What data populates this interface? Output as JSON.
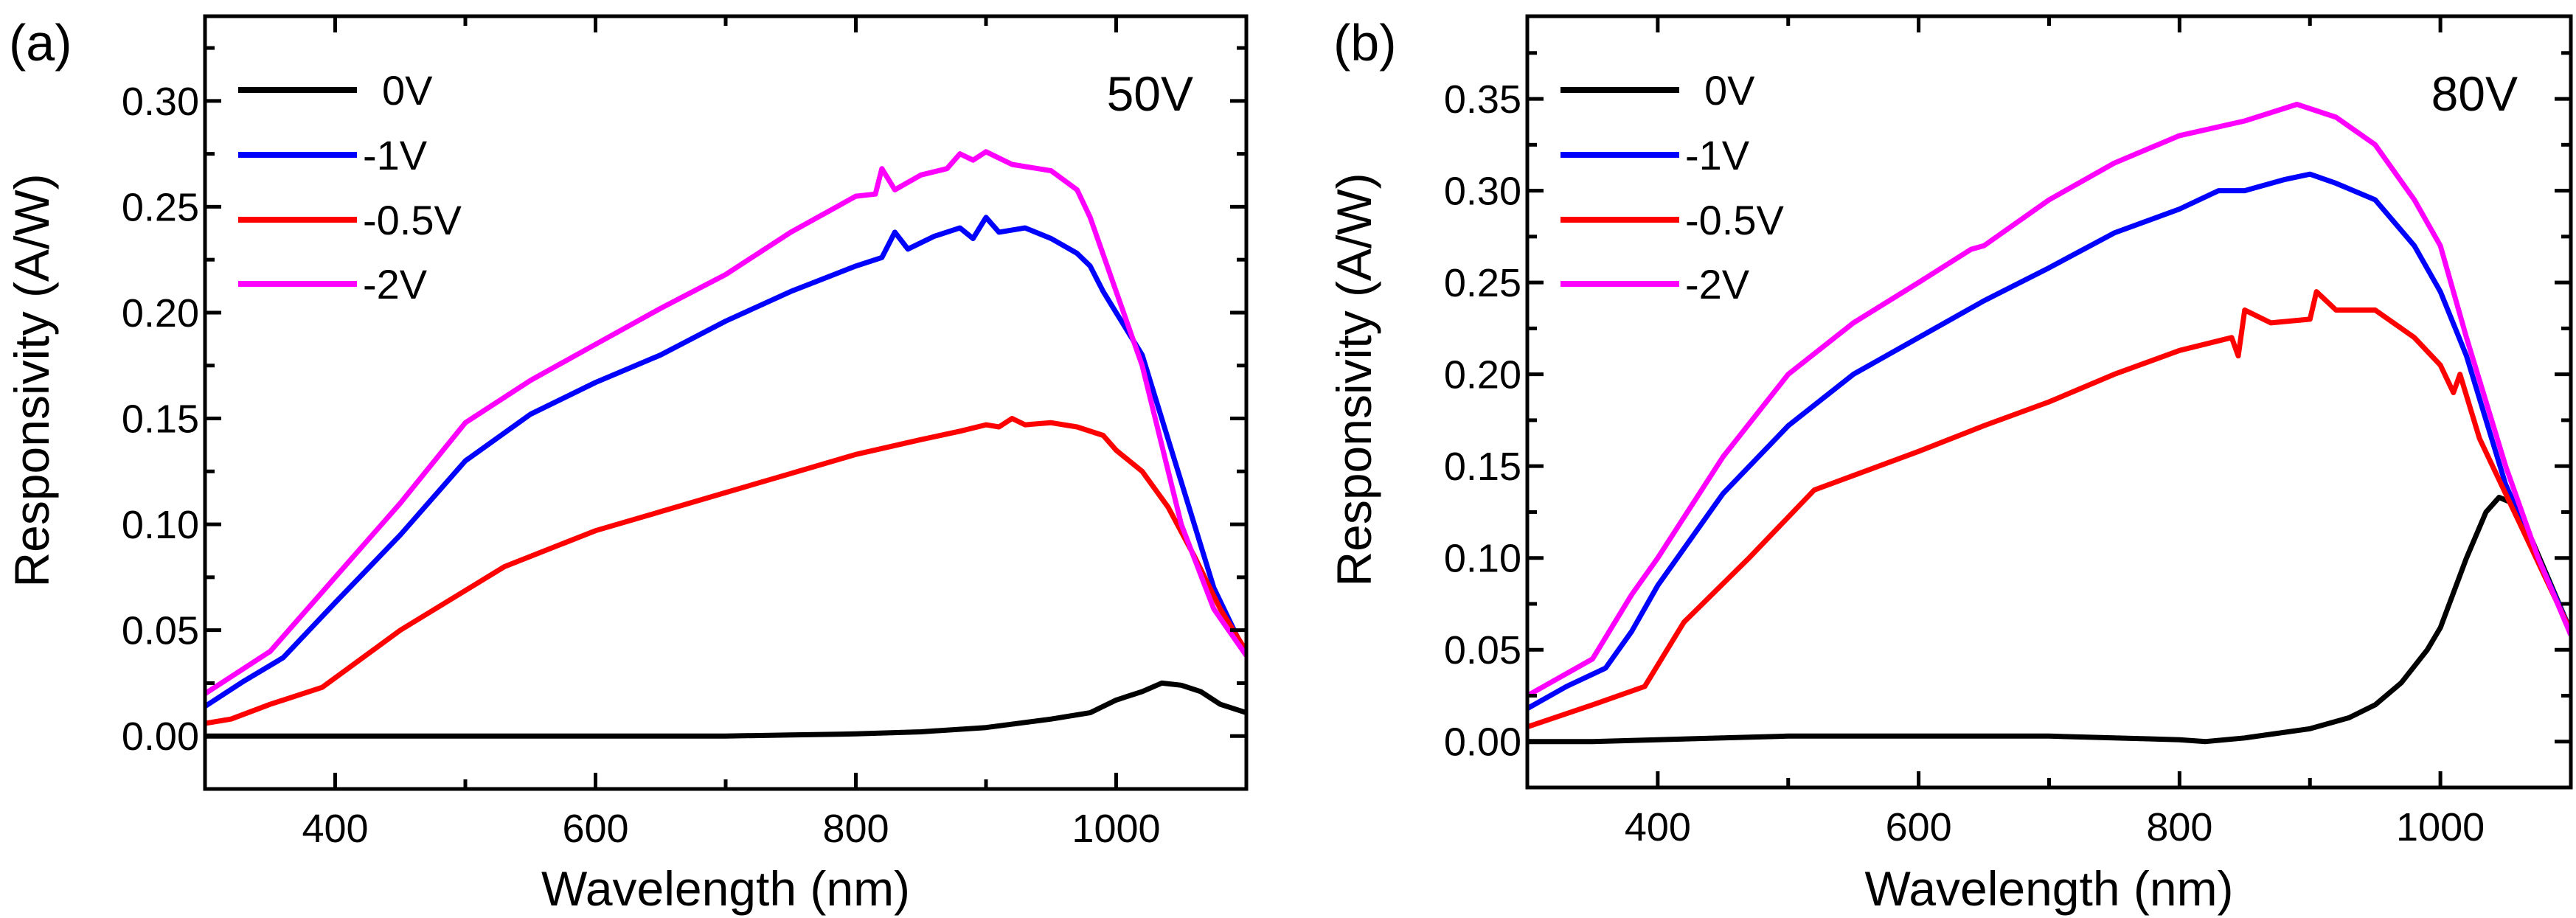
{
  "chart_data": [
    {
      "type": "line",
      "panel_label": "(a)",
      "annotation": "50V",
      "xlabel": "Wavelength (nm)",
      "ylabel": "Responsivity (A/W)",
      "xlim": [
        300,
        1100
      ],
      "ylim": [
        -0.025,
        0.34
      ],
      "xticks": [
        400,
        600,
        800,
        1000
      ],
      "xtick_labels": [
        "400",
        "600",
        "800",
        "1000"
      ],
      "yticks": [
        0,
        0.05,
        0.1,
        0.15,
        0.2,
        0.25,
        0.3
      ],
      "ytick_labels": [
        "0.00",
        "0.05",
        "0.10",
        "0.15",
        "0.20",
        "0.25",
        "0.30"
      ],
      "grid": false,
      "legend_position": "top-left",
      "series": [
        {
          "name": "0V",
          "color": "#000000",
          "x": [
            300,
            400,
            500,
            600,
            700,
            750,
            800,
            850,
            900,
            950,
            980,
            1000,
            1020,
            1035,
            1050,
            1065,
            1080,
            1100
          ],
          "y": [
            0,
            0,
            0,
            0,
            0,
            0.0005,
            0.001,
            0.002,
            0.004,
            0.008,
            0.011,
            0.017,
            0.021,
            0.025,
            0.024,
            0.021,
            0.015,
            0.011
          ]
        },
        {
          "name": "-1V",
          "color": "#0000ff",
          "x": [
            300,
            330,
            360,
            400,
            450,
            500,
            550,
            600,
            650,
            700,
            750,
            800,
            820,
            830,
            840,
            860,
            880,
            890,
            900,
            910,
            930,
            950,
            970,
            980,
            990,
            1000,
            1020,
            1050,
            1075,
            1100
          ],
          "y": [
            0.014,
            0.026,
            0.037,
            0.063,
            0.095,
            0.13,
            0.152,
            0.167,
            0.18,
            0.196,
            0.21,
            0.222,
            0.226,
            0.238,
            0.23,
            0.236,
            0.24,
            0.235,
            0.245,
            0.238,
            0.24,
            0.235,
            0.228,
            0.222,
            0.21,
            0.2,
            0.18,
            0.12,
            0.07,
            0.038
          ]
        },
        {
          "name": "-0.5V",
          "color": "#ff0000",
          "x": [
            300,
            320,
            350,
            390,
            450,
            530,
            600,
            650,
            700,
            750,
            800,
            850,
            880,
            900,
            910,
            920,
            930,
            950,
            970,
            990,
            1000,
            1020,
            1040,
            1060,
            1080,
            1100
          ],
          "y": [
            0.006,
            0.008,
            0.015,
            0.023,
            0.05,
            0.08,
            0.097,
            0.106,
            0.115,
            0.124,
            0.133,
            0.14,
            0.144,
            0.147,
            0.146,
            0.15,
            0.147,
            0.148,
            0.146,
            0.142,
            0.135,
            0.125,
            0.108,
            0.085,
            0.06,
            0.04
          ]
        },
        {
          "name": "-2V",
          "color": "#ff00ff",
          "x": [
            300,
            350,
            400,
            450,
            500,
            550,
            600,
            650,
            700,
            750,
            800,
            815,
            820,
            830,
            850,
            870,
            880,
            890,
            900,
            920,
            950,
            970,
            980,
            1000,
            1020,
            1050,
            1075,
            1100
          ],
          "y": [
            0.02,
            0.04,
            0.075,
            0.11,
            0.148,
            0.168,
            0.185,
            0.202,
            0.218,
            0.238,
            0.255,
            0.256,
            0.268,
            0.258,
            0.265,
            0.268,
            0.275,
            0.272,
            0.276,
            0.27,
            0.267,
            0.258,
            0.245,
            0.21,
            0.175,
            0.1,
            0.06,
            0.038
          ]
        }
      ]
    },
    {
      "type": "line",
      "panel_label": "(b)",
      "annotation": "80V",
      "xlabel": "Wavelength (nm)",
      "ylabel": "Responsivity (A/W)",
      "xlim": [
        300,
        1100
      ],
      "ylim": [
        -0.025,
        0.395
      ],
      "xticks": [
        400,
        600,
        800,
        1000
      ],
      "xtick_labels": [
        "400",
        "600",
        "800",
        "1000"
      ],
      "yticks": [
        0,
        0.05,
        0.1,
        0.15,
        0.2,
        0.25,
        0.3,
        0.35
      ],
      "ytick_labels": [
        "0.00",
        "0.05",
        "0.10",
        "0.15",
        "0.20",
        "0.25",
        "0.30",
        "0.35"
      ],
      "grid": false,
      "legend_position": "top-left",
      "series": [
        {
          "name": "0V",
          "color": "#000000",
          "x": [
            300,
            350,
            400,
            500,
            600,
            650,
            700,
            750,
            800,
            820,
            850,
            900,
            930,
            950,
            970,
            990,
            1000,
            1020,
            1035,
            1045,
            1055,
            1070,
            1085,
            1100
          ],
          "y": [
            0,
            0,
            0.001,
            0.003,
            0.003,
            0.003,
            0.003,
            0.002,
            0.001,
            0,
            0.002,
            0.007,
            0.013,
            0.02,
            0.032,
            0.05,
            0.062,
            0.1,
            0.125,
            0.133,
            0.13,
            0.11,
            0.085,
            0.06
          ]
        },
        {
          "name": "-1V",
          "color": "#0000ff",
          "x": [
            300,
            330,
            360,
            380,
            400,
            450,
            500,
            550,
            600,
            650,
            700,
            750,
            800,
            830,
            850,
            880,
            900,
            920,
            950,
            980,
            1000,
            1020,
            1050,
            1075,
            1100
          ],
          "y": [
            0.018,
            0.03,
            0.04,
            0.06,
            0.085,
            0.135,
            0.172,
            0.2,
            0.22,
            0.24,
            0.258,
            0.277,
            0.29,
            0.3,
            0.3,
            0.306,
            0.309,
            0.304,
            0.295,
            0.27,
            0.245,
            0.21,
            0.14,
            0.1,
            0.06
          ]
        },
        {
          "name": "-0.5V",
          "color": "#ff0000",
          "x": [
            300,
            350,
            390,
            420,
            470,
            520,
            600,
            650,
            700,
            750,
            800,
            840,
            845,
            850,
            870,
            900,
            905,
            920,
            950,
            980,
            1000,
            1010,
            1015,
            1030,
            1060,
            1080,
            1100
          ],
          "y": [
            0.008,
            0.02,
            0.03,
            0.065,
            0.1,
            0.137,
            0.158,
            0.172,
            0.185,
            0.2,
            0.213,
            0.22,
            0.21,
            0.235,
            0.228,
            0.23,
            0.245,
            0.235,
            0.235,
            0.22,
            0.205,
            0.19,
            0.2,
            0.165,
            0.12,
            0.09,
            0.06
          ]
        },
        {
          "name": "-2V",
          "color": "#ff00ff",
          "x": [
            300,
            350,
            380,
            400,
            450,
            500,
            550,
            600,
            640,
            650,
            700,
            750,
            800,
            850,
            890,
            920,
            950,
            980,
            1000,
            1020,
            1050,
            1075,
            1100
          ],
          "y": [
            0.025,
            0.045,
            0.08,
            0.1,
            0.155,
            0.2,
            0.228,
            0.25,
            0.268,
            0.27,
            0.295,
            0.315,
            0.33,
            0.338,
            0.347,
            0.34,
            0.325,
            0.295,
            0.27,
            0.22,
            0.15,
            0.1,
            0.058
          ]
        }
      ]
    }
  ]
}
